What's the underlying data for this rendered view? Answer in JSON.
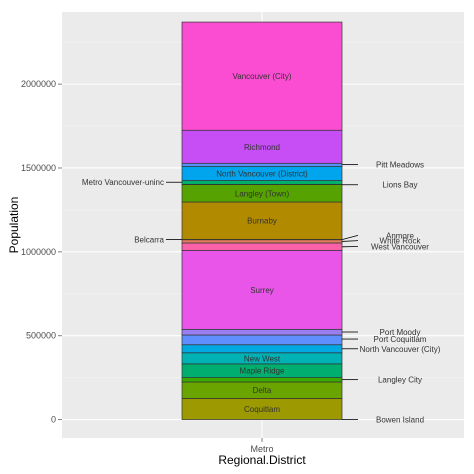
{
  "chart_data": {
    "type": "bar",
    "stacked": true,
    "xlabel": "Regional.District",
    "ylabel": "Population",
    "categories": [
      "Metro"
    ],
    "ylim": [
      -110000,
      2430000
    ],
    "y_ticks": [
      0,
      500000,
      1000000,
      1500000,
      2000000
    ],
    "y_tick_labels": [
      "0",
      "500000",
      "1000000",
      "1500000",
      "2000000"
    ],
    "grid": true,
    "panel_color": "#ebebeb",
    "segments": [
      {
        "name": "Coquitlam",
        "bottom": 0,
        "top": 126000,
        "color": "#9c9a00",
        "labeled": true
      },
      {
        "name": "Delta",
        "bottom": 126000,
        "top": 224000,
        "color": "#6aa400",
        "labeled": true
      },
      {
        "name": "Langley City",
        "bottom": 224000,
        "top": 250000,
        "color": "#3aaa00",
        "labeled": false
      },
      {
        "name": "Maple Ridge",
        "bottom": 250000,
        "top": 332000,
        "color": "#00ae6f",
        "labeled": true
      },
      {
        "name": "New West",
        "bottom": 332000,
        "top": 398000,
        "color": "#00b2b4",
        "labeled": true
      },
      {
        "name": "North Vancouver (City)",
        "bottom": 398000,
        "top": 446000,
        "color": "#00a9e1",
        "labeled": false
      },
      {
        "name": "Port Coquitlam",
        "bottom": 446000,
        "top": 504000,
        "color": "#5f8fff",
        "labeled": false
      },
      {
        "name": "Port Moody",
        "bottom": 504000,
        "top": 538000,
        "color": "#9a7ef0",
        "labeled": false
      },
      {
        "name": "Surrey",
        "bottom": 538000,
        "top": 1009000,
        "color": "#e855e8",
        "labeled": true
      },
      {
        "name": "West Vancouver",
        "bottom": 1009000,
        "top": 1053000,
        "color": "#fb61a8",
        "labeled": false
      },
      {
        "name": "White Rock",
        "bottom": 1053000,
        "top": 1072000,
        "color": "#e47b5e",
        "labeled": false
      },
      {
        "name": "Anmore",
        "bottom": 1072000,
        "top": 1074000,
        "color": "#d18700",
        "labeled": false
      },
      {
        "name": "Burnaby",
        "bottom": 1074000,
        "top": 1297000,
        "color": "#b28a00",
        "labeled": true
      },
      {
        "name": "Langley (Town)",
        "bottom": 1297000,
        "top": 1401000,
        "color": "#56a200",
        "labeled": true
      },
      {
        "name": "Lions Bay",
        "bottom": 1401000,
        "top": 1402000,
        "color": "#20aa00",
        "labeled": false
      },
      {
        "name": "Metro Vancouver-uninc",
        "bottom": 1402000,
        "top": 1425000,
        "color": "#00b06a",
        "labeled": false
      },
      {
        "name": "North Vancouver (District)",
        "bottom": 1425000,
        "top": 1510000,
        "color": "#00a5ee",
        "labeled": true
      },
      {
        "name": "Pitt Meadows",
        "bottom": 1510000,
        "top": 1528000,
        "color": "#5c90ff",
        "labeled": false
      },
      {
        "name": "Richmond",
        "bottom": 1528000,
        "top": 1725000,
        "color": "#c74ef5",
        "labeled": true
      },
      {
        "name": "Vancouver (City)",
        "bottom": 1725000,
        "top": 2370000,
        "color": "#fb4dd1",
        "labeled": true
      },
      {
        "name": "Belcarra",
        "bottom": 1074000,
        "top": 1074000,
        "color": "#e8b000",
        "labeled": false
      },
      {
        "name": "Bowen Island",
        "bottom": 0,
        "top": 0,
        "color": "#9c9a00",
        "labeled": false
      }
    ],
    "annotations": [
      {
        "text": "Pitt Meadows",
        "side": "right",
        "value": 1520000,
        "label_value": 1520000
      },
      {
        "text": "Lions Bay",
        "side": "right",
        "value": 1400000,
        "label_value": 1400000
      },
      {
        "text": "Anmore",
        "side": "right",
        "value": 1073000,
        "label_value": 1098000
      },
      {
        "text": "White Rock",
        "side": "right",
        "value": 1062000,
        "label_value": 1067000
      },
      {
        "text": "West Vancouver",
        "side": "right",
        "value": 1030000,
        "label_value": 1032000
      },
      {
        "text": "Port Moody",
        "side": "right",
        "value": 522000,
        "label_value": 522000
      },
      {
        "text": "Port Coquitlam",
        "side": "right",
        "value": 480000,
        "label_value": 480000
      },
      {
        "text": "North Vancouver (City)",
        "side": "right",
        "value": 422000,
        "label_value": 422000
      },
      {
        "text": "Langley City",
        "side": "right",
        "value": 238000,
        "label_value": 238000
      },
      {
        "text": "Bowen Island",
        "side": "right",
        "value": 0,
        "label_value": 0
      },
      {
        "text": "Metro Vancouver-uninc",
        "side": "left",
        "value": 1415000,
        "label_value": 1415000
      },
      {
        "text": "Belcarra",
        "side": "left",
        "value": 1073000,
        "label_value": 1073000
      }
    ]
  }
}
